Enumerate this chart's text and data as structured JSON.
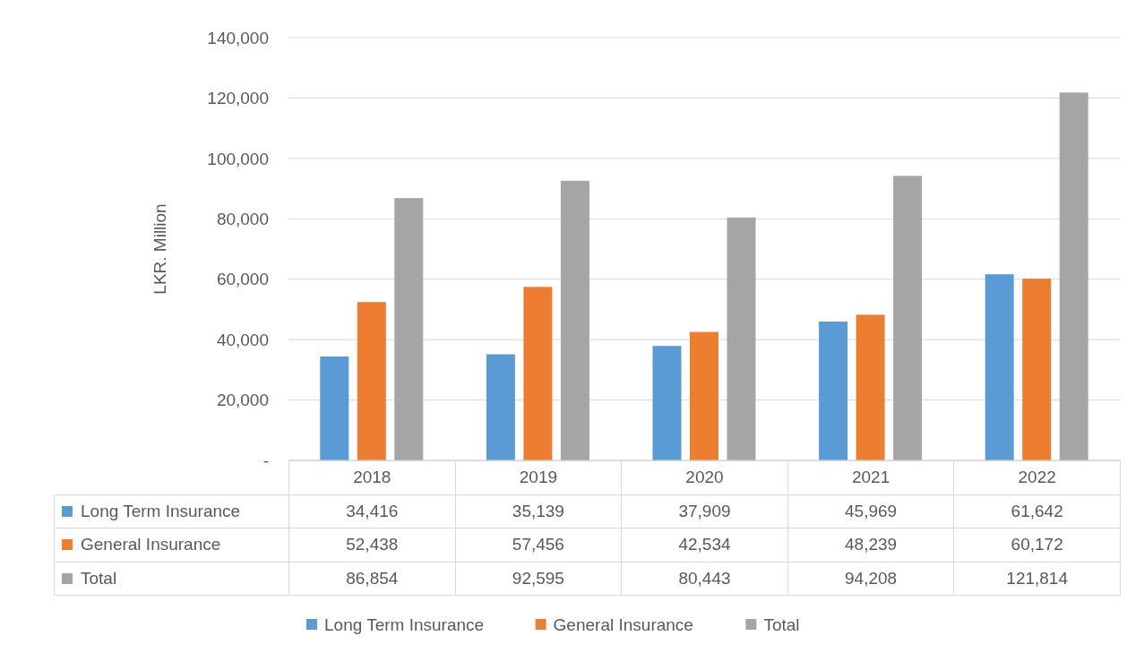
{
  "chart_data": {
    "type": "bar",
    "ylabel": "LKR. Million",
    "categories": [
      "2018",
      "2019",
      "2020",
      "2021",
      "2022"
    ],
    "series": [
      {
        "name": "Long Term Insurance",
        "color": "#5b9bd5",
        "values": [
          34416,
          35139,
          37909,
          45969,
          61642
        ],
        "value_labels": [
          "34,416",
          "35,139",
          "37,909",
          "45,969",
          "61,642"
        ]
      },
      {
        "name": "General Insurance",
        "color": "#ed7d31",
        "values": [
          52438,
          57456,
          42534,
          48239,
          60172
        ],
        "value_labels": [
          "52,438",
          "57,456",
          "42,534",
          "48,239",
          "60,172"
        ]
      },
      {
        "name": "Total",
        "color": "#a5a5a5",
        "values": [
          86854,
          92595,
          80443,
          94208,
          121814
        ],
        "value_labels": [
          "86,854",
          "92,595",
          "80,443",
          "94,208",
          "121,814"
        ]
      }
    ],
    "ylim": [
      0,
      140000
    ],
    "yticks": [
      {
        "value": 0,
        "label": "-"
      },
      {
        "value": 20000,
        "label": "20,000"
      },
      {
        "value": 40000,
        "label": "40,000"
      },
      {
        "value": 60000,
        "label": "60,000"
      },
      {
        "value": 80000,
        "label": "80,000"
      },
      {
        "value": 100000,
        "label": "100,000"
      },
      {
        "value": 120000,
        "label": "120,000"
      },
      {
        "value": 140000,
        "label": "140,000"
      }
    ],
    "grid": "y",
    "legend": "bottom"
  }
}
